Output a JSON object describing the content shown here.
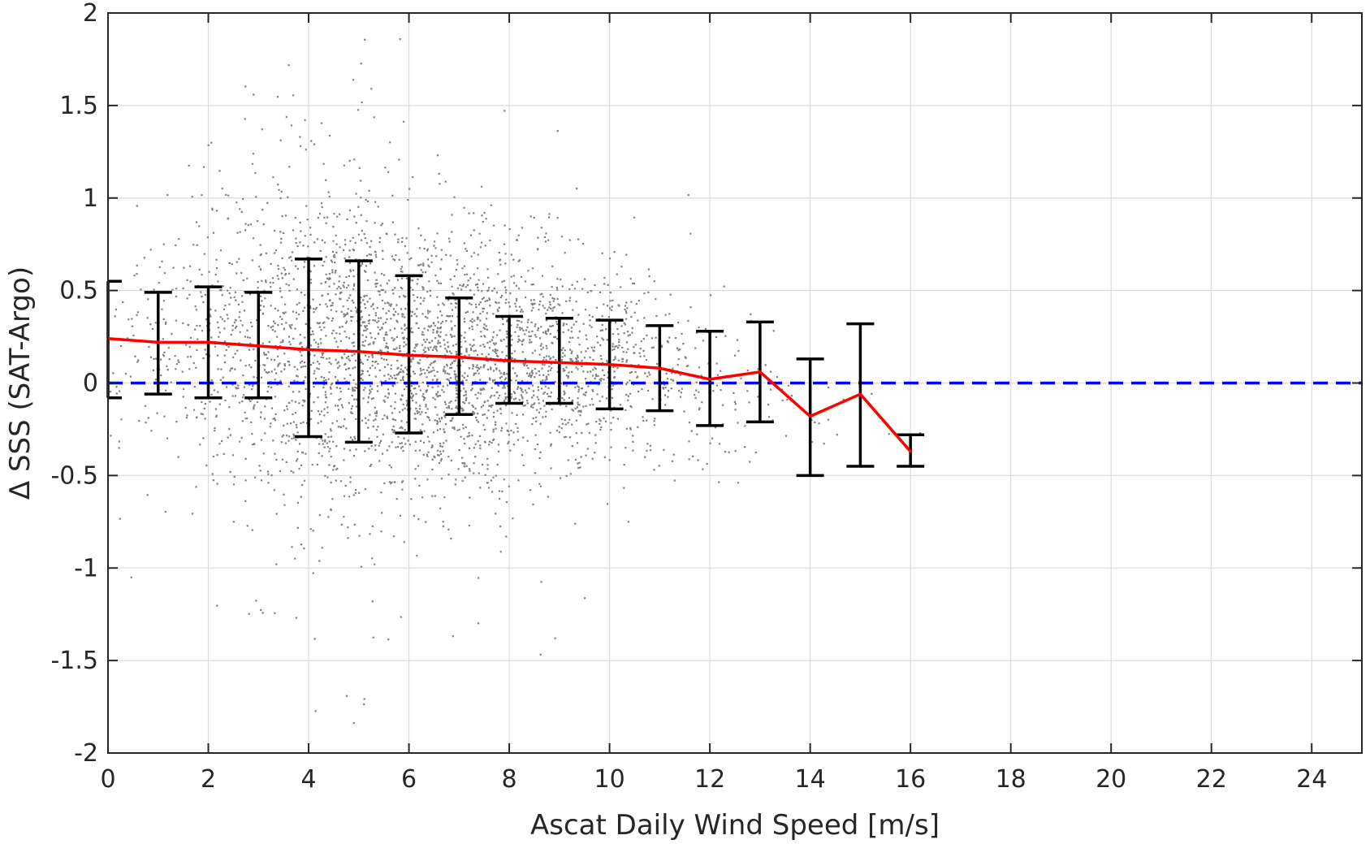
{
  "chart_data": {
    "type": "scatter",
    "title": "",
    "xlabel": "Ascat Daily Wind Speed [m/s]",
    "ylabel": "Δ SSS (SAT-Argo)",
    "xlim": [
      0,
      25
    ],
    "ylim": [
      -2,
      2
    ],
    "xticks": [
      "0",
      "2",
      "4",
      "6",
      "8",
      "10",
      "12",
      "14",
      "16",
      "18",
      "20",
      "22",
      "24"
    ],
    "yticks": [
      "2",
      "1.5",
      "1",
      "0.5",
      "0",
      "-0.5",
      "-1",
      "-1.5",
      "-2"
    ],
    "grid": true,
    "colors": {
      "scatter": "#808080",
      "mean_line": "#ff0000",
      "error_bars": "#000000",
      "zero_line": "#0000ff",
      "grid": "#dcdcdc",
      "axes": "#262626"
    },
    "series": [
      {
        "type": "scatter",
        "description_only": true,
        "x_range": [
          0,
          16.5
        ],
        "y_range": [
          -2,
          2
        ],
        "y_spread_by_wind": [
          {
            "x": 0,
            "mean": 0.22,
            "sd": 0.32
          },
          {
            "x": 4,
            "mean": 0.18,
            "sd": 0.45
          },
          {
            "x": 8,
            "mean": 0.12,
            "sd": 0.3
          },
          {
            "x": 12,
            "mean": 0.03,
            "sd": 0.22
          },
          {
            "x": 16,
            "mean": -0.3,
            "sd": 0.1
          }
        ]
      },
      {
        "type": "line",
        "x": [
          0,
          1,
          2,
          3,
          4,
          5,
          6,
          7,
          8,
          9,
          10,
          11,
          12,
          13,
          14,
          15,
          16
        ],
        "y": [
          0.24,
          0.22,
          0.22,
          0.2,
          0.18,
          0.17,
          0.15,
          0.14,
          0.12,
          0.11,
          0.1,
          0.08,
          0.02,
          0.06,
          -0.18,
          -0.06,
          -0.37
        ]
      },
      {
        "type": "errorbar",
        "x": [
          0,
          1,
          2,
          3,
          4,
          5,
          6,
          7,
          8,
          9,
          10,
          11,
          12,
          13,
          14,
          15,
          16
        ],
        "upper": [
          0.55,
          0.49,
          0.52,
          0.49,
          0.67,
          0.66,
          0.58,
          0.46,
          0.36,
          0.35,
          0.34,
          0.31,
          0.28,
          0.33,
          0.13,
          0.32,
          -0.28
        ],
        "lower": [
          -0.08,
          -0.06,
          -0.08,
          -0.08,
          -0.29,
          -0.32,
          -0.27,
          -0.17,
          -0.11,
          -0.11,
          -0.14,
          -0.15,
          -0.23,
          -0.21,
          -0.5,
          -0.45,
          -0.45
        ]
      },
      {
        "type": "hline",
        "y": 0,
        "style": "dashed"
      }
    ]
  }
}
